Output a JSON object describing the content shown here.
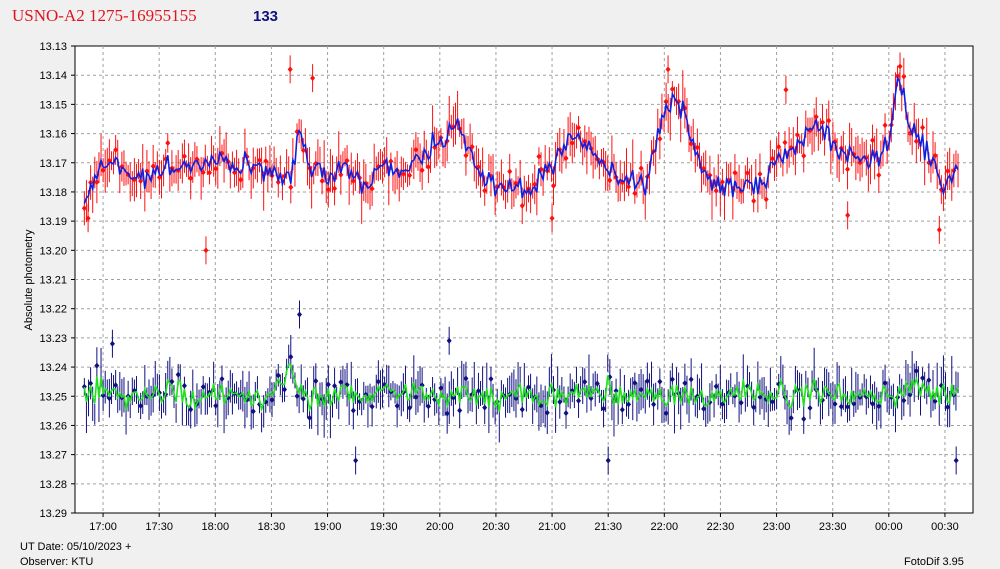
{
  "title": {
    "star": "USNO-A2 1275-16955155",
    "count": "133",
    "star_color": "#e0141e",
    "count_color": "#101080"
  },
  "footer": {
    "date": "UT Date: 05/10/2023 +",
    "observer": "Observer: KTU",
    "software": "FotoDif 3.95"
  },
  "chart_data": {
    "type": "scatter",
    "title": "USNO-A2 1275-16955155",
    "ylabel": "Absolute photometry",
    "y_inverted": true,
    "ylim": [
      13.13,
      13.29
    ],
    "yticks": [
      "13.13",
      "13.14",
      "13.15",
      "13.16",
      "13.17",
      "13.18",
      "13.19",
      "13.20",
      "13.21",
      "13.22",
      "13.23",
      "13.24",
      "13.25",
      "13.26",
      "13.27",
      "13.28",
      "13.29"
    ],
    "xlim": [
      "16:45",
      "00:45"
    ],
    "xticks": [
      "17:00",
      "17:30",
      "18:00",
      "18:30",
      "19:00",
      "19:30",
      "20:00",
      "20:30",
      "21:00",
      "21:30",
      "22:00",
      "22:30",
      "23:00",
      "23:30",
      "00:00",
      "00:30"
    ],
    "grid": true,
    "series": [
      {
        "role": "variable",
        "color_points": "#ff1010",
        "color_smooth": "#1020e0",
        "x": [
          "16:50",
          "17:00",
          "17:10",
          "17:20",
          "17:30",
          "17:40",
          "17:50",
          "18:00",
          "18:10",
          "18:20",
          "18:30",
          "18:40",
          "18:45",
          "18:50",
          "19:00",
          "19:10",
          "19:20",
          "19:30",
          "19:40",
          "19:50",
          "20:00",
          "20:10",
          "20:20",
          "20:30",
          "20:40",
          "20:50",
          "21:00",
          "21:10",
          "21:20",
          "21:30",
          "21:40",
          "21:50",
          "22:00",
          "22:05",
          "22:10",
          "22:20",
          "22:30",
          "22:40",
          "22:50",
          "23:00",
          "23:10",
          "23:20",
          "23:30",
          "23:40",
          "23:50",
          "00:00",
          "00:05",
          "00:10",
          "00:20",
          "00:30",
          "00:37"
        ],
        "y": [
          13.182,
          13.17,
          13.172,
          13.175,
          13.173,
          13.172,
          13.17,
          13.168,
          13.172,
          13.169,
          13.175,
          13.177,
          13.158,
          13.17,
          13.175,
          13.172,
          13.178,
          13.17,
          13.172,
          13.168,
          13.162,
          13.158,
          13.173,
          13.18,
          13.178,
          13.18,
          13.17,
          13.16,
          13.165,
          13.172,
          13.177,
          13.177,
          13.152,
          13.148,
          13.153,
          13.173,
          13.178,
          13.18,
          13.177,
          13.17,
          13.165,
          13.155,
          13.163,
          13.168,
          13.17,
          13.165,
          13.14,
          13.155,
          13.165,
          13.18,
          13.172
        ],
        "scatter": 0.007,
        "point_count": 420,
        "outliers": [
          {
            "x": "18:40",
            "y": 13.138
          },
          {
            "x": "18:52",
            "y": 13.141
          },
          {
            "x": "22:02",
            "y": 13.138
          },
          {
            "x": "23:05",
            "y": 13.145
          },
          {
            "x": "23:38",
            "y": 13.188
          },
          {
            "x": "00:06",
            "y": 13.137
          },
          {
            "x": "00:27",
            "y": 13.193
          },
          {
            "x": "17:55",
            "y": 13.2
          },
          {
            "x": "16:52",
            "y": 13.189
          },
          {
            "x": "21:00",
            "y": 13.189
          }
        ]
      },
      {
        "role": "check",
        "color_points": "#101080",
        "color_smooth": "#20e020",
        "x": [
          "16:50",
          "17:00",
          "17:10",
          "17:20",
          "17:30",
          "17:40",
          "17:50",
          "18:00",
          "18:10",
          "18:20",
          "18:30",
          "18:40",
          "18:45",
          "18:50",
          "19:00",
          "19:10",
          "19:20",
          "19:30",
          "19:40",
          "19:50",
          "20:00",
          "20:10",
          "20:20",
          "20:30",
          "20:40",
          "20:50",
          "21:00",
          "21:10",
          "21:20",
          "21:30",
          "21:40",
          "21:50",
          "22:00",
          "22:10",
          "22:20",
          "22:30",
          "22:40",
          "22:50",
          "23:00",
          "23:10",
          "23:20",
          "23:30",
          "23:40",
          "23:50",
          "00:00",
          "00:10",
          "00:20",
          "00:30",
          "00:37"
        ],
        "y": [
          13.247,
          13.248,
          13.25,
          13.249,
          13.25,
          13.247,
          13.252,
          13.248,
          13.249,
          13.25,
          13.248,
          13.242,
          13.246,
          13.251,
          13.249,
          13.248,
          13.25,
          13.248,
          13.248,
          13.247,
          13.25,
          13.249,
          13.252,
          13.25,
          13.249,
          13.25,
          13.25,
          13.249,
          13.25,
          13.248,
          13.25,
          13.251,
          13.25,
          13.249,
          13.251,
          13.25,
          13.249,
          13.248,
          13.25,
          13.249,
          13.248,
          13.249,
          13.25,
          13.249,
          13.25,
          13.247,
          13.248,
          13.25,
          13.249
        ],
        "scatter": 0.008,
        "point_count": 420,
        "outliers": [
          {
            "x": "17:05",
            "y": 13.232
          },
          {
            "x": "18:45",
            "y": 13.222
          },
          {
            "x": "19:15",
            "y": 13.272
          },
          {
            "x": "21:30",
            "y": 13.272
          },
          {
            "x": "00:36",
            "y": 13.272
          },
          {
            "x": "20:05",
            "y": 13.231
          }
        ]
      }
    ]
  }
}
